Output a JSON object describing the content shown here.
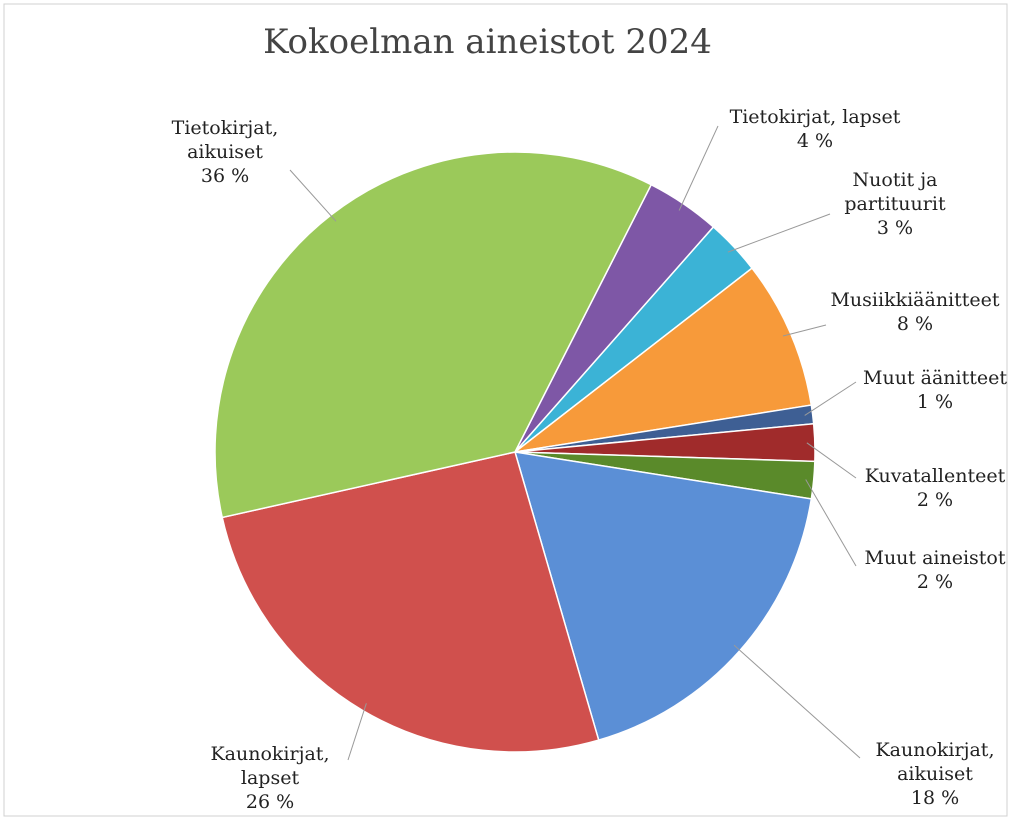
{
  "chart_data": {
    "type": "pie",
    "title": "Kokoelman aineistot 2024",
    "categories": [
      "Tietokirjat, lapset",
      "Nuotit ja partituurit",
      "Musiikkiäänitteet",
      "Muut äänitteet",
      "Kuvatallenteet",
      "Muut aineistot",
      "Kaunokirjat, aikuiset",
      "Kaunokirjat, lapset",
      "Tietokirjat, aikuiset"
    ],
    "values": [
      4,
      3,
      8,
      1,
      2,
      2,
      18,
      26,
      36
    ],
    "value_labels": [
      "4 %",
      "3 %",
      "8 %",
      "1 %",
      "2 %",
      "2 %",
      "18 %",
      "26 %",
      "36 %"
    ],
    "colors": [
      "#7e57a6",
      "#3bb3d6",
      "#f79a3a",
      "#3e5f94",
      "#a02b2b",
      "#5a8a2a",
      "#5b8fd6",
      "#d0504d",
      "#9bc95a"
    ]
  }
}
